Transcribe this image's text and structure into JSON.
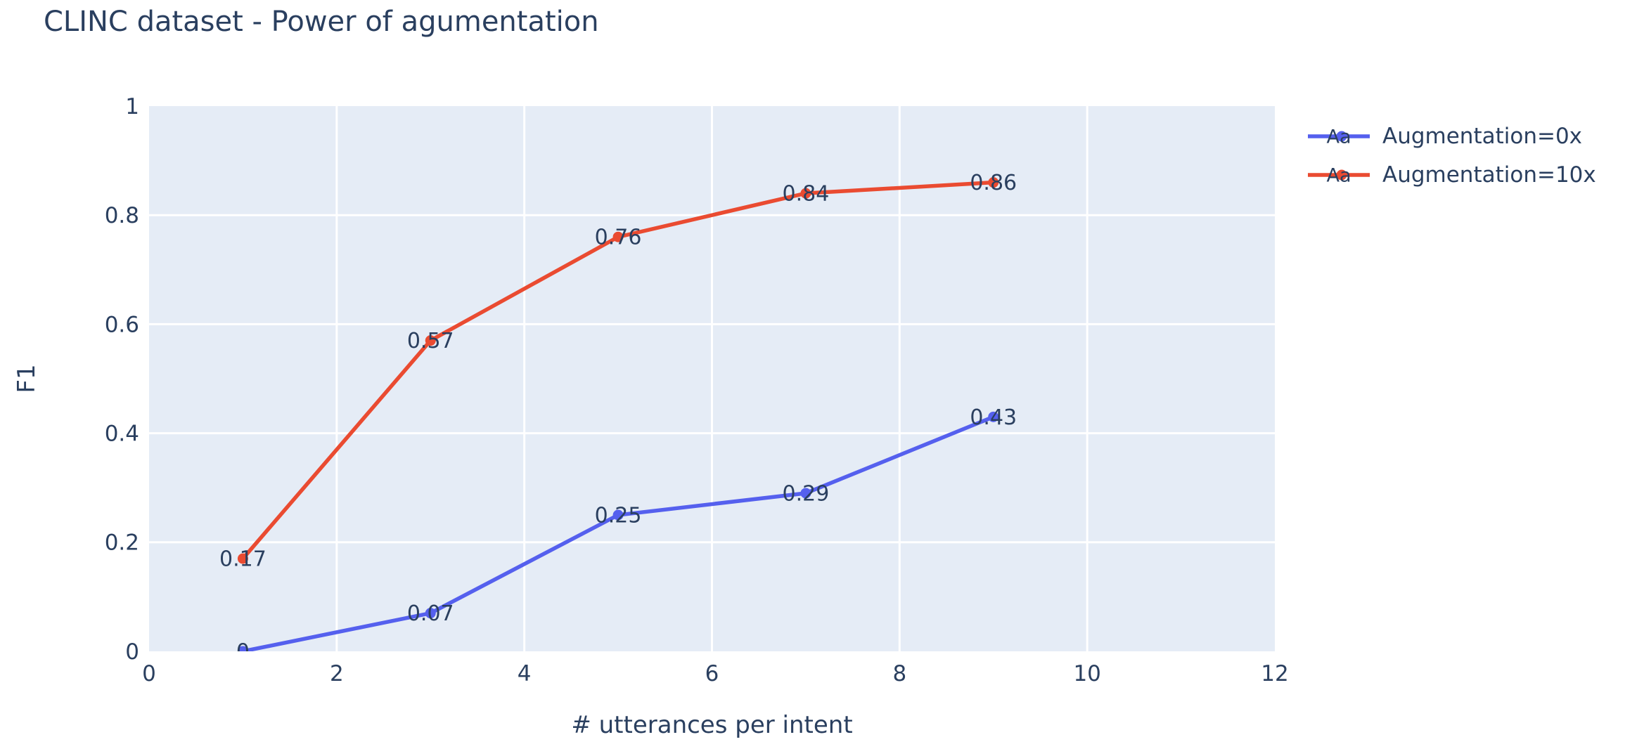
{
  "title": "CLINC dataset - Power of agumentation",
  "chart_data": {
    "type": "line",
    "x": [
      1,
      3,
      5,
      7,
      9
    ],
    "series": [
      {
        "name": "Augmentation=0x",
        "color": "#5560EE",
        "values": [
          0,
          0.07,
          0.25,
          0.29,
          0.43
        ],
        "point_labels": [
          "0",
          "0.07",
          "0.25",
          "0.29",
          "0.43"
        ]
      },
      {
        "name": "Augmentation=10x",
        "color": "#EA4B31",
        "values": [
          0.17,
          0.57,
          0.76,
          0.84,
          0.86
        ],
        "point_labels": [
          "0.17",
          "0.57",
          "0.76",
          "0.84",
          "0.86"
        ]
      }
    ],
    "xlabel": "# utterances per intent",
    "ylabel": "F1",
    "xlim": [
      0,
      12
    ],
    "ylim": [
      0,
      1
    ],
    "x_ticks": [
      0,
      2,
      4,
      6,
      8,
      10,
      12
    ],
    "x_tick_labels": [
      "0",
      "2",
      "4",
      "6",
      "8",
      "10",
      "12"
    ],
    "y_ticks": [
      0,
      0.2,
      0.4,
      0.6,
      0.8,
      1
    ],
    "y_tick_labels": [
      "0",
      "0.2",
      "0.4",
      "0.6",
      "0.8",
      "1"
    ],
    "grid": true,
    "legend_position": "right",
    "legend_sample_text": "Aa",
    "colors": {
      "plot_bg": "#E5ECF6",
      "grid": "#FFFFFF",
      "text": "#2A3F5F"
    }
  }
}
